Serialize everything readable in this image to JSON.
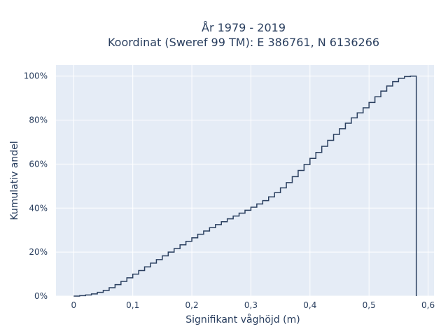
{
  "chart_data": {
    "type": "line",
    "line_shape": "step",
    "title": "År 1979 - 2019",
    "subtitle": "Koordinat (Sweref 99 TM): E 386761, N 6136266",
    "xlabel": "Signifikant våghöjd (m)",
    "ylabel": "Kumulativ andel",
    "xlim": [
      -0.03,
      0.61
    ],
    "ylim": [
      0,
      1.05
    ],
    "x_ticks": [
      0,
      0.1,
      0.2,
      0.3,
      0.4,
      0.5,
      0.6
    ],
    "x_tick_labels": [
      "0",
      "0,1",
      "0,2",
      "0,3",
      "0,4",
      "0,5",
      "0,6"
    ],
    "y_ticks": [
      0,
      0.2,
      0.4,
      0.6,
      0.8,
      1.0
    ],
    "y_tick_labels": [
      "0%",
      "20%",
      "40%",
      "60%",
      "80%",
      "100%"
    ],
    "grid": true,
    "colors": {
      "background": "#e5ecf6",
      "grid": "#ffffff",
      "line": "#2a3f5f",
      "text": "#2a3f5f"
    },
    "series": [
      {
        "x": [
          0,
          0.01,
          0.02,
          0.03,
          0.04,
          0.05,
          0.06,
          0.07,
          0.08,
          0.09,
          0.1,
          0.11,
          0.12,
          0.13,
          0.14,
          0.15,
          0.16,
          0.17,
          0.18,
          0.19,
          0.2,
          0.21,
          0.22,
          0.23,
          0.24,
          0.25,
          0.26,
          0.27,
          0.28,
          0.29,
          0.3,
          0.31,
          0.32,
          0.33,
          0.34,
          0.35,
          0.36,
          0.37,
          0.38,
          0.39,
          0.4,
          0.41,
          0.42,
          0.43,
          0.44,
          0.45,
          0.46,
          0.47,
          0.48,
          0.49,
          0.5,
          0.51,
          0.52,
          0.53,
          0.54,
          0.55,
          0.56,
          0.57,
          0.58
        ],
        "y": [
          0.0,
          0.002,
          0.005,
          0.01,
          0.017,
          0.026,
          0.038,
          0.052,
          0.067,
          0.083,
          0.1,
          0.116,
          0.133,
          0.15,
          0.166,
          0.183,
          0.2,
          0.216,
          0.233,
          0.249,
          0.265,
          0.281,
          0.296,
          0.311,
          0.325,
          0.338,
          0.351,
          0.364,
          0.377,
          0.39,
          0.404,
          0.419,
          0.434,
          0.451,
          0.47,
          0.492,
          0.516,
          0.543,
          0.571,
          0.598,
          0.626,
          0.653,
          0.681,
          0.708,
          0.735,
          0.761,
          0.786,
          0.81,
          0.833,
          0.856,
          0.88,
          0.906,
          0.932,
          0.955,
          0.975,
          0.99,
          0.998,
          1.0,
          0.0
        ]
      }
    ]
  }
}
